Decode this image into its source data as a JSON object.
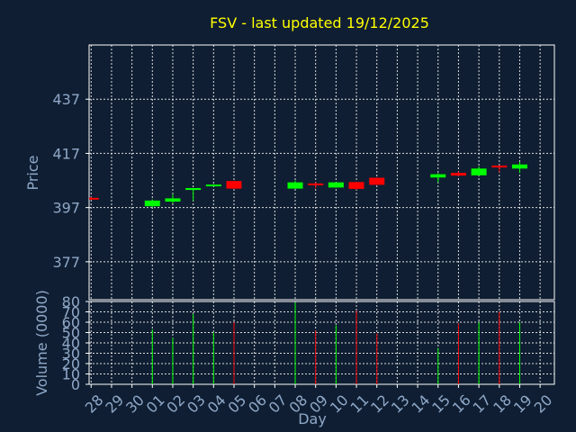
{
  "chart_data": {
    "type": "candlestick",
    "title": "FSV - last updated 19/12/2025",
    "colors": {
      "background": "#0f1e32",
      "up": "#00ff00",
      "down": "#ff0000",
      "title": "#ffff00",
      "axis_text": "#8fa8c8",
      "grid": "#ffffff"
    },
    "price_panel": {
      "ylabel": "Price",
      "ylim": [
        363,
        457
      ],
      "yticks": [
        377,
        397,
        417,
        437
      ],
      "grid": true
    },
    "volume_panel": {
      "ylabel": "Volume (0000)",
      "ylim": [
        0,
        80
      ],
      "yticks": [
        0,
        10,
        20,
        30,
        40,
        50,
        60,
        70,
        80
      ],
      "grid": true
    },
    "xlabel": "Day",
    "x_ticks": [
      "28",
      "29",
      "30",
      "01",
      "02",
      "03",
      "04",
      "05",
      "06",
      "07",
      "08",
      "09",
      "10",
      "11",
      "12",
      "13",
      "14",
      "15",
      "16",
      "17",
      "18",
      "19",
      "20"
    ],
    "candles": [
      {
        "i": 0,
        "open": 400.6,
        "close": 400.2,
        "high": 400.9,
        "low": 399.9,
        "volume": null
      },
      {
        "i": 3,
        "open": 397.5,
        "close": 399.6,
        "high": 400.0,
        "low": 397.0,
        "volume": 53
      },
      {
        "i": 4,
        "open": 399.2,
        "close": 400.4,
        "high": 402.0,
        "low": 398.5,
        "volume": 45
      },
      {
        "i": 5,
        "open": 403.5,
        "close": 404.2,
        "high": 404.2,
        "low": 399.5,
        "volume": 68
      },
      {
        "i": 6,
        "open": 405.0,
        "close": 405.5,
        "high": 405.6,
        "low": 404.8,
        "volume": 50
      },
      {
        "i": 7,
        "open": 406.8,
        "close": 404.0,
        "high": 406.9,
        "low": 403.8,
        "volume": 60
      },
      {
        "i": 10,
        "open": 404.0,
        "close": 406.3,
        "high": 407.0,
        "low": 403.9,
        "volume": 79
      },
      {
        "i": 11,
        "open": 405.9,
        "close": 405.3,
        "high": 406.3,
        "low": 404.1,
        "volume": 52
      },
      {
        "i": 12,
        "open": 404.4,
        "close": 406.3,
        "high": 406.4,
        "low": 404.3,
        "volume": 57
      },
      {
        "i": 13,
        "open": 406.4,
        "close": 403.9,
        "high": 406.5,
        "low": 403.6,
        "volume": 71
      },
      {
        "i": 14,
        "open": 408.0,
        "close": 405.4,
        "high": 408.1,
        "low": 405.3,
        "volume": 49
      },
      {
        "i": 17,
        "open": 408.1,
        "close": 409.3,
        "high": 409.7,
        "low": 406.3,
        "volume": 35
      },
      {
        "i": 18,
        "open": 409.8,
        "close": 408.8,
        "high": 410.3,
        "low": 408.6,
        "volume": 59
      },
      {
        "i": 19,
        "open": 408.9,
        "close": 411.4,
        "high": 412.2,
        "low": 408.8,
        "volume": 60
      },
      {
        "i": 20,
        "open": 412.5,
        "close": 411.8,
        "high": 412.6,
        "low": 410.0,
        "volume": 70
      },
      {
        "i": 21,
        "open": 411.4,
        "close": 412.9,
        "high": 413.9,
        "low": 409.8,
        "volume": 60
      }
    ]
  }
}
